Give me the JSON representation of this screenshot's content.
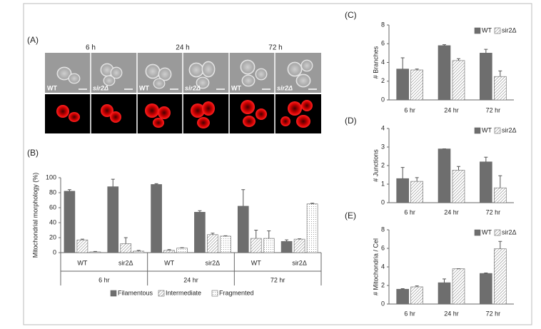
{
  "panel_a": {
    "label": "(A)",
    "timepoints": [
      "6 h",
      "24 h",
      "72 h"
    ],
    "strains": [
      "WT",
      "sir2Δ"
    ]
  },
  "chart_data": [
    {
      "type": "bar",
      "panel_label": "(B)",
      "ylabel": "Mitochondrial morphology (%)",
      "categories": [
        "WT",
        "sir2Δ",
        "WT",
        "sir2Δ",
        "WT",
        "sir2Δ"
      ],
      "groups": [
        "6 hr",
        "24 hr",
        "72 hr"
      ],
      "ylim": [
        0,
        100
      ],
      "yticks": [
        0,
        20,
        40,
        60,
        80,
        100
      ],
      "legend": "bottom",
      "series": [
        {
          "name": "Filamentous",
          "color": "#6e6e6e",
          "pattern": "solid",
          "values": [
            82,
            88,
            91,
            54,
            62,
            15
          ],
          "errors": [
            2,
            10,
            1,
            2,
            22,
            2
          ]
        },
        {
          "name": "Intermediate",
          "color": "#777777",
          "pattern": "hatch",
          "values": [
            17,
            12,
            3,
            24,
            19,
            18
          ],
          "errors": [
            1,
            8,
            1,
            2,
            11,
            0.5
          ]
        },
        {
          "name": "Fragmented",
          "color": "#888888",
          "pattern": "dots",
          "values": [
            1,
            2,
            6,
            22,
            19,
            65
          ],
          "errors": [
            0.5,
            1,
            0.5,
            0.5,
            10,
            1
          ]
        }
      ]
    },
    {
      "type": "bar",
      "panel_label": "(C)",
      "ylabel": "# Branches",
      "categories": [
        "6 hr",
        "24 hr",
        "72 hr"
      ],
      "ylim": [
        0,
        8
      ],
      "yticks": [
        0,
        2,
        4,
        6,
        8
      ],
      "legend": "top-right",
      "series": [
        {
          "name": "WT",
          "color": "#6e6e6e",
          "pattern": "solid",
          "values": [
            3.3,
            5.8,
            5.0
          ],
          "errors": [
            1.2,
            0.1,
            0.4
          ]
        },
        {
          "name": "sir2Δ",
          "color": "#777777",
          "pattern": "hatch",
          "values": [
            3.2,
            4.2,
            2.5
          ],
          "errors": [
            0.1,
            0.2,
            0.6
          ]
        }
      ]
    },
    {
      "type": "bar",
      "panel_label": "(D)",
      "ylabel": "# Junctions",
      "categories": [
        "6 hr",
        "24 hr",
        "72 hr"
      ],
      "ylim": [
        0,
        4
      ],
      "yticks": [
        0,
        1,
        2,
        3,
        4
      ],
      "legend": "top-right",
      "series": [
        {
          "name": "WT",
          "color": "#6e6e6e",
          "pattern": "solid",
          "values": [
            1.3,
            2.9,
            2.2
          ],
          "errors": [
            0.6,
            0,
            0.25
          ]
        },
        {
          "name": "sir2Δ",
          "color": "#777777",
          "pattern": "hatch",
          "values": [
            1.15,
            1.75,
            0.8
          ],
          "errors": [
            0.2,
            0.2,
            0.65
          ]
        }
      ]
    },
    {
      "type": "bar",
      "panel_label": "(E)",
      "ylabel": "# Mitochondria / Cel",
      "categories": [
        "6 hr",
        "24 hr",
        "72 hr"
      ],
      "ylim": [
        0,
        8
      ],
      "yticks": [
        0,
        2,
        4,
        6,
        8
      ],
      "legend": "top-right",
      "series": [
        {
          "name": "WT",
          "color": "#6e6e6e",
          "pattern": "solid",
          "values": [
            1.6,
            2.3,
            3.3
          ],
          "errors": [
            0.05,
            0.4,
            0.05
          ]
        },
        {
          "name": "sir2Δ",
          "color": "#777777",
          "pattern": "hatch",
          "values": [
            1.85,
            3.8,
            5.95
          ],
          "errors": [
            0.1,
            0,
            0.8
          ]
        }
      ]
    }
  ]
}
